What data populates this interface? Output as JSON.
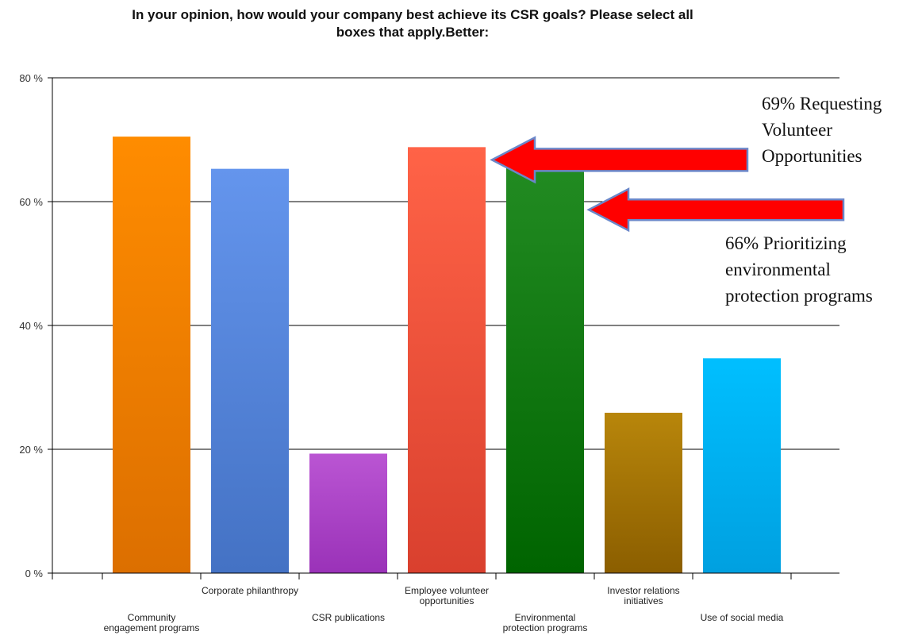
{
  "chart_data": {
    "type": "bar",
    "title_lines": [
      "In your opinion, how would your company best achieve its CSR goals? Please select all",
      "boxes that apply.Better:"
    ],
    "ylim": [
      0,
      80
    ],
    "yticks": [
      0,
      20,
      40,
      60,
      80
    ],
    "ytick_labels": [
      "0 %",
      "20 %",
      "40 %",
      "60 %",
      "80 %"
    ],
    "grid": true,
    "categories": [
      [
        "Community",
        "engagement programs"
      ],
      [
        "Corporate philanthropy"
      ],
      [
        "CSR publications"
      ],
      [
        "Employee volunteer",
        "opportunities"
      ],
      [
        "Environmental",
        "protection programs"
      ],
      [
        "Investor relations",
        "initiatives"
      ],
      [
        "Use of social media"
      ]
    ],
    "values": [
      70.5,
      65.3,
      19.3,
      68.8,
      66.0,
      25.9,
      34.7
    ],
    "colors": [
      [
        "#ff8c00",
        "#dc6f00"
      ],
      [
        "#6495ed",
        "#4472c4"
      ],
      [
        "#ba55d3",
        "#9a32b8"
      ],
      [
        "#ff6347",
        "#d9402e"
      ],
      [
        "#228b22",
        "#006400"
      ],
      [
        "#b8860b",
        "#8b5e00"
      ],
      [
        "#00bfff",
        "#00a0e0"
      ]
    ],
    "annotations": [
      {
        "lines": [
          "69% Requesting",
          "Volunteer",
          "Opportunities"
        ],
        "target_category": "Employee volunteer opportunities",
        "target_value": 68.8
      },
      {
        "lines": [
          "66% Prioritizing",
          "environmental",
          "protection programs"
        ],
        "target_category": "Environmental protection programs",
        "target_value": 66.0
      }
    ],
    "arrow_color": "#ff0000",
    "arrow_outline": "#6b87c9"
  }
}
